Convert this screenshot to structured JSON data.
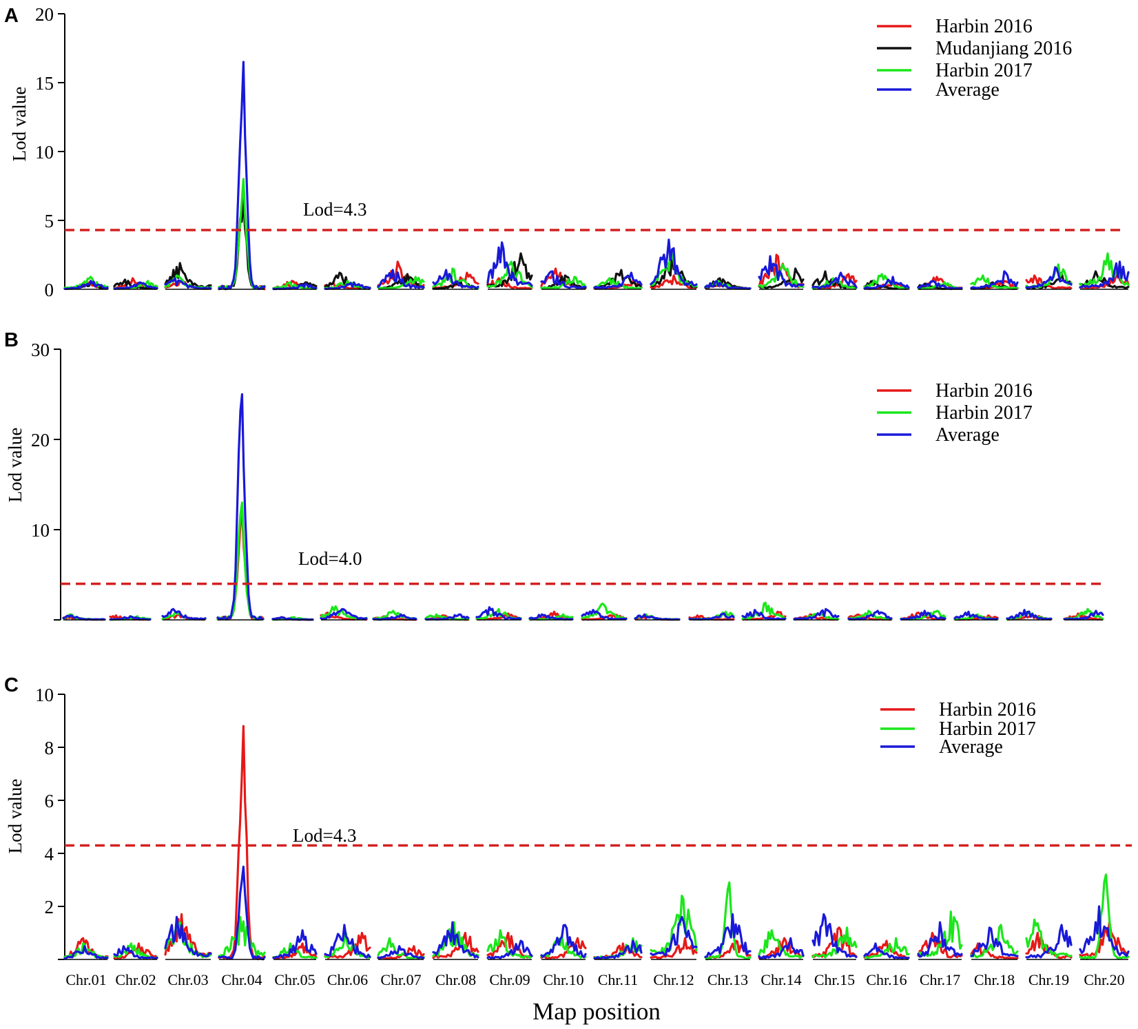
{
  "figure": {
    "xlabel": "Map position"
  },
  "colors": {
    "Harbin 2016": "#e61919",
    "Mudanjiang 2016": "#111111",
    "Harbin 2017": "#1be61b",
    "Average": "#1919d9",
    "threshold": "#d42020"
  },
  "chart_data": [
    {
      "panel": "A",
      "type": "line",
      "ylabel": "Lod value",
      "ylim": [
        0,
        20
      ],
      "yticks": [
        "0",
        "5",
        "10",
        "15",
        "20"
      ],
      "threshold": 4.3,
      "threshold_label": "Lod=4.3",
      "legend": [
        "Harbin 2016",
        "Mudanjiang 2016",
        "Harbin 2017",
        "Average"
      ],
      "legend_position": "top-right",
      "categories": [
        "Chr.01",
        "Chr.02",
        "Chr.03",
        "Chr.04",
        "Chr.05",
        "Chr.06",
        "Chr.07",
        "Chr.08",
        "Chr.09",
        "Chr.10",
        "Chr.11",
        "Chr.12",
        "Chr.13",
        "Chr.14",
        "Chr.15",
        "Chr.16",
        "Chr.17",
        "Chr.18",
        "Chr.19",
        "Chr.20"
      ],
      "peaks": {
        "Harbin 2016": [
          0.6,
          0.8,
          0.6,
          7.5,
          0.6,
          0.5,
          2.0,
          1.2,
          0.8,
          1.5,
          0.6,
          1.0,
          0.6,
          2.5,
          1.1,
          0.6,
          0.9,
          0.6,
          1.0,
          1.2
        ],
        "Mudanjiang 2016": [
          0.5,
          0.7,
          1.9,
          6.5,
          0.5,
          1.2,
          1.1,
          0.6,
          2.6,
          1.0,
          1.4,
          2.5,
          0.8,
          1.5,
          1.3,
          0.6,
          0.4,
          0.5,
          1.2,
          1.3
        ],
        "Harbin 2017": [
          0.9,
          0.6,
          1.0,
          8.0,
          0.5,
          0.6,
          0.9,
          1.5,
          2.0,
          0.9,
          0.8,
          2.8,
          0.6,
          1.8,
          0.8,
          1.1,
          0.5,
          1.0,
          1.8,
          2.6
        ],
        "Average": [
          0.6,
          0.5,
          0.8,
          16.5,
          0.4,
          0.5,
          1.4,
          1.4,
          3.4,
          1.3,
          1.2,
          3.6,
          0.6,
          2.4,
          1.2,
          0.9,
          0.6,
          1.3,
          1.6,
          2.0
        ]
      }
    },
    {
      "panel": "B",
      "type": "line",
      "ylabel": "Lod value",
      "ylim": [
        0,
        30
      ],
      "yticks": [
        "10",
        "20",
        "30"
      ],
      "threshold": 4.0,
      "threshold_label": "Lod=4.0",
      "legend": [
        "Harbin 2016",
        "Harbin 2017",
        "Average"
      ],
      "legend_position": "top-right",
      "categories": [
        "Chr.01",
        "Chr.02",
        "Chr.03",
        "Chr.04",
        "Chr.05",
        "Chr.06",
        "Chr.07",
        "Chr.08",
        "Chr.09",
        "Chr.10",
        "Chr.11",
        "Chr.12",
        "Chr.13",
        "Chr.14",
        "Chr.15",
        "Chr.16",
        "Chr.17",
        "Chr.18",
        "Chr.19",
        "Chr.20"
      ],
      "peaks": {
        "Harbin 2016": [
          0.4,
          0.5,
          0.6,
          12.0,
          0.3,
          0.8,
          0.4,
          0.5,
          0.7,
          0.9,
          0.6,
          0.4,
          0.5,
          0.9,
          0.6,
          0.6,
          0.8,
          0.5,
          0.6,
          0.7
        ],
        "Harbin 2017": [
          0.6,
          0.4,
          0.8,
          13.0,
          0.3,
          1.5,
          1.0,
          0.6,
          1.2,
          0.6,
          1.8,
          0.6,
          0.9,
          1.9,
          0.7,
          1.0,
          1.0,
          0.6,
          0.9,
          1.2
        ],
        "Average": [
          0.5,
          0.4,
          1.2,
          25.0,
          0.3,
          1.2,
          0.6,
          0.6,
          1.4,
          0.6,
          1.1,
          0.6,
          0.7,
          1.1,
          1.2,
          1.0,
          1.0,
          0.9,
          1.1,
          1.0
        ]
      }
    },
    {
      "panel": "C",
      "type": "line",
      "ylabel": "Lod value",
      "ylim": [
        0,
        10
      ],
      "yticks": [
        "2",
        "4",
        "6",
        "8",
        "10"
      ],
      "threshold": 4.3,
      "threshold_label": "Lod=4.3",
      "legend": [
        "Harbin 2016",
        "Harbin 2017",
        "Average"
      ],
      "legend_position": "top-right",
      "categories": [
        "Chr.01",
        "Chr.02",
        "Chr.03",
        "Chr.04",
        "Chr.05",
        "Chr.06",
        "Chr.07",
        "Chr.08",
        "Chr.09",
        "Chr.10",
        "Chr.11",
        "Chr.12",
        "Chr.13",
        "Chr.14",
        "Chr.15",
        "Chr.16",
        "Chr.17",
        "Chr.18",
        "Chr.19",
        "Chr.20"
      ],
      "peaks": {
        "Harbin 2016": [
          0.8,
          0.6,
          1.7,
          8.8,
          0.6,
          1.0,
          0.5,
          1.0,
          1.0,
          0.8,
          0.6,
          0.8,
          0.7,
          0.8,
          1.2,
          0.7,
          1.0,
          0.6,
          1.0,
          1.4
        ],
        "Harbin 2017": [
          0.6,
          0.6,
          1.4,
          1.6,
          0.6,
          1.0,
          0.8,
          1.4,
          1.1,
          0.9,
          0.8,
          2.4,
          2.9,
          1.1,
          1.2,
          0.8,
          1.8,
          1.3,
          1.5,
          3.2
        ],
        "Average": [
          0.5,
          0.5,
          1.6,
          3.5,
          1.1,
          1.3,
          0.5,
          1.4,
          0.7,
          1.3,
          0.7,
          1.6,
          1.7,
          0.8,
          1.7,
          0.6,
          1.4,
          1.2,
          1.3,
          2.0
        ]
      }
    }
  ]
}
